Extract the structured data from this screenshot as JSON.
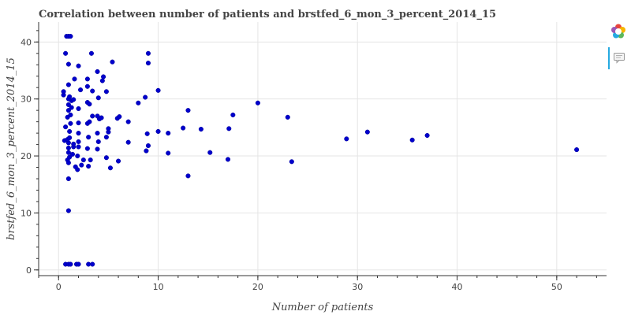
{
  "chart_data": {
    "type": "scatter",
    "title": "Correlation between number of patients and brstfed_6_mon_3_percent_2014_15",
    "xlabel": "Number of patients",
    "ylabel": "brstfed_6_mon_3_percent_2014_15",
    "xlim": [
      -2,
      55
    ],
    "ylim": [
      -1,
      43.5
    ],
    "x_ticks": [
      0,
      10,
      20,
      30,
      40,
      50
    ],
    "y_ticks": [
      0,
      10,
      20,
      30,
      40
    ],
    "grid": true,
    "point_color": "#0000cc",
    "points": [
      [
        0.7,
        1.0
      ],
      [
        1.0,
        1.0
      ],
      [
        1.2,
        1.0
      ],
      [
        1.8,
        1.0
      ],
      [
        2.0,
        1.0
      ],
      [
        3.0,
        1.0
      ],
      [
        3.4,
        1.0
      ],
      [
        1.0,
        10.4
      ],
      [
        1.0,
        16.0
      ],
      [
        1.9,
        17.6
      ],
      [
        1.7,
        18.1
      ],
      [
        2.3,
        18.4
      ],
      [
        3.0,
        18.2
      ],
      [
        5.2,
        17.9
      ],
      [
        0.9,
        19.3
      ],
      [
        1.0,
        18.8
      ],
      [
        1.1,
        19.8
      ],
      [
        2.5,
        19.3
      ],
      [
        3.2,
        19.3
      ],
      [
        4.8,
        19.7
      ],
      [
        6.0,
        19.1
      ],
      [
        1.0,
        20.6
      ],
      [
        1.4,
        20.3
      ],
      [
        1.9,
        20.0
      ],
      [
        1.0,
        21.4
      ],
      [
        1.5,
        21.6
      ],
      [
        2.0,
        21.6
      ],
      [
        2.9,
        21.3
      ],
      [
        3.9,
        21.2
      ],
      [
        4.0,
        22.5
      ],
      [
        0.6,
        22.7
      ],
      [
        1.0,
        22.3
      ],
      [
        1.5,
        22.1
      ],
      [
        2.0,
        22.5
      ],
      [
        0.9,
        22.9
      ],
      [
        1.1,
        23.2
      ],
      [
        1.1,
        24.3
      ],
      [
        2.0,
        24.0
      ],
      [
        3.0,
        23.3
      ],
      [
        3.9,
        24.0
      ],
      [
        4.8,
        23.3
      ],
      [
        5.0,
        24.2
      ],
      [
        0.7,
        25.1
      ],
      [
        1.2,
        25.7
      ],
      [
        2.0,
        25.8
      ],
      [
        2.9,
        25.7
      ],
      [
        3.1,
        26.0
      ],
      [
        4.1,
        26.5
      ],
      [
        5.0,
        24.8
      ],
      [
        0.9,
        26.8
      ],
      [
        1.2,
        27.2
      ],
      [
        1.0,
        28.0
      ],
      [
        1.3,
        28.5
      ],
      [
        2.0,
        28.3
      ],
      [
        3.4,
        27.0
      ],
      [
        3.9,
        27.0
      ],
      [
        4.3,
        26.7
      ],
      [
        5.9,
        26.6
      ],
      [
        1.0,
        29.0
      ],
      [
        1.3,
        29.7
      ],
      [
        1.0,
        30.0
      ],
      [
        1.5,
        29.9
      ],
      [
        2.9,
        29.4
      ],
      [
        3.1,
        29.1
      ],
      [
        0.5,
        30.7
      ],
      [
        1.1,
        30.4
      ],
      [
        0.5,
        31.3
      ],
      [
        2.2,
        31.6
      ],
      [
        3.4,
        31.4
      ],
      [
        4.8,
        31.3
      ],
      [
        1.0,
        32.5
      ],
      [
        2.9,
        32.2
      ],
      [
        4.0,
        30.2
      ],
      [
        1.6,
        33.5
      ],
      [
        2.9,
        33.5
      ],
      [
        4.4,
        33.2
      ],
      [
        4.5,
        33.9
      ],
      [
        3.9,
        34.8
      ],
      [
        1.0,
        36.1
      ],
      [
        2.0,
        35.8
      ],
      [
        5.4,
        36.5
      ],
      [
        0.7,
        38.0
      ],
      [
        3.3,
        38.0
      ],
      [
        0.8,
        41.0
      ],
      [
        1.0,
        41.0
      ],
      [
        1.2,
        41.0
      ],
      [
        6.1,
        26.9
      ],
      [
        7.0,
        26.0
      ],
      [
        7.0,
        22.4
      ],
      [
        8.0,
        29.3
      ],
      [
        8.7,
        30.3
      ],
      [
        8.8,
        20.9
      ],
      [
        8.9,
        23.9
      ],
      [
        9.0,
        21.8
      ],
      [
        9.0,
        36.3
      ],
      [
        9.0,
        38.0
      ],
      [
        10.0,
        31.5
      ],
      [
        10.0,
        24.3
      ],
      [
        11.0,
        20.5
      ],
      [
        11.0,
        24.0
      ],
      [
        12.5,
        24.9
      ],
      [
        13.0,
        28.0
      ],
      [
        13.0,
        16.5
      ],
      [
        14.3,
        24.7
      ],
      [
        15.2,
        20.6
      ],
      [
        17.0,
        19.4
      ],
      [
        17.1,
        24.8
      ],
      [
        17.5,
        27.2
      ],
      [
        20.0,
        29.3
      ],
      [
        23.0,
        26.8
      ],
      [
        23.4,
        19.0
      ],
      [
        28.9,
        23.0
      ],
      [
        31.0,
        24.2
      ],
      [
        35.5,
        22.8
      ],
      [
        37.0,
        23.6
      ],
      [
        52.0,
        21.1
      ]
    ]
  },
  "toolbar": {
    "logo_icon": "bokeh-logo-icon",
    "hover_icon": "hover-tool-icon",
    "accent_color": "#26aae1"
  }
}
